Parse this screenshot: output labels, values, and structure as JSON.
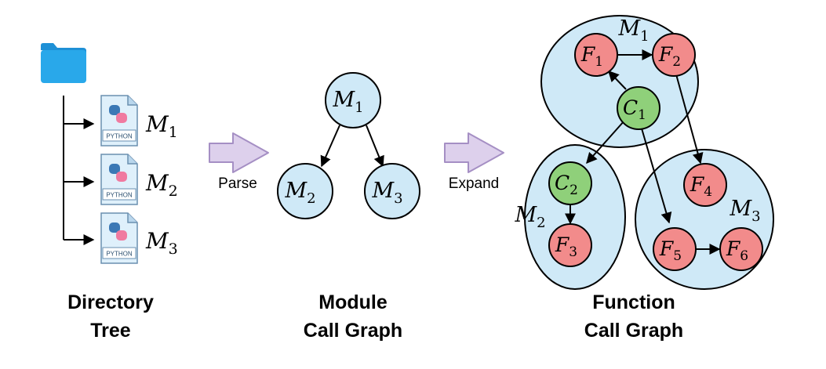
{
  "tree": {
    "files": [
      {
        "name": "M",
        "sub": "1",
        "badge": "PYTHON"
      },
      {
        "name": "M",
        "sub": "2",
        "badge": "PYTHON"
      },
      {
        "name": "M",
        "sub": "3",
        "badge": "PYTHON"
      }
    ],
    "caption_line1": "Directory",
    "caption_line2": "Tree"
  },
  "arrows": {
    "parse_label": "Parse",
    "expand_label": "Expand"
  },
  "module_graph": {
    "nodes": [
      {
        "name": "M",
        "sub": "1"
      },
      {
        "name": "M",
        "sub": "2"
      },
      {
        "name": "M",
        "sub": "3"
      }
    ],
    "caption_line1": "Module",
    "caption_line2": "Call Graph"
  },
  "function_graph": {
    "modules": [
      {
        "name": "M",
        "sub": "1"
      },
      {
        "name": "M",
        "sub": "2"
      },
      {
        "name": "M",
        "sub": "3"
      }
    ],
    "nodes": [
      {
        "name": "F",
        "sub": "1",
        "kind": "function"
      },
      {
        "name": "F",
        "sub": "2",
        "kind": "function"
      },
      {
        "name": "C",
        "sub": "1",
        "kind": "class"
      },
      {
        "name": "C",
        "sub": "2",
        "kind": "class"
      },
      {
        "name": "F",
        "sub": "3",
        "kind": "function"
      },
      {
        "name": "F",
        "sub": "4",
        "kind": "function"
      },
      {
        "name": "F",
        "sub": "5",
        "kind": "function"
      },
      {
        "name": "F",
        "sub": "6",
        "kind": "function"
      }
    ],
    "caption_line1": "Function",
    "caption_line2": "Call Graph"
  },
  "colors": {
    "module_fill": "#cfe9f7",
    "function_fill": "#f28b8b",
    "class_fill": "#8fd07a",
    "arrow_fill": "#ddd0ec",
    "arrow_stroke": "#a58fc4",
    "folder": "#29a8ea"
  }
}
